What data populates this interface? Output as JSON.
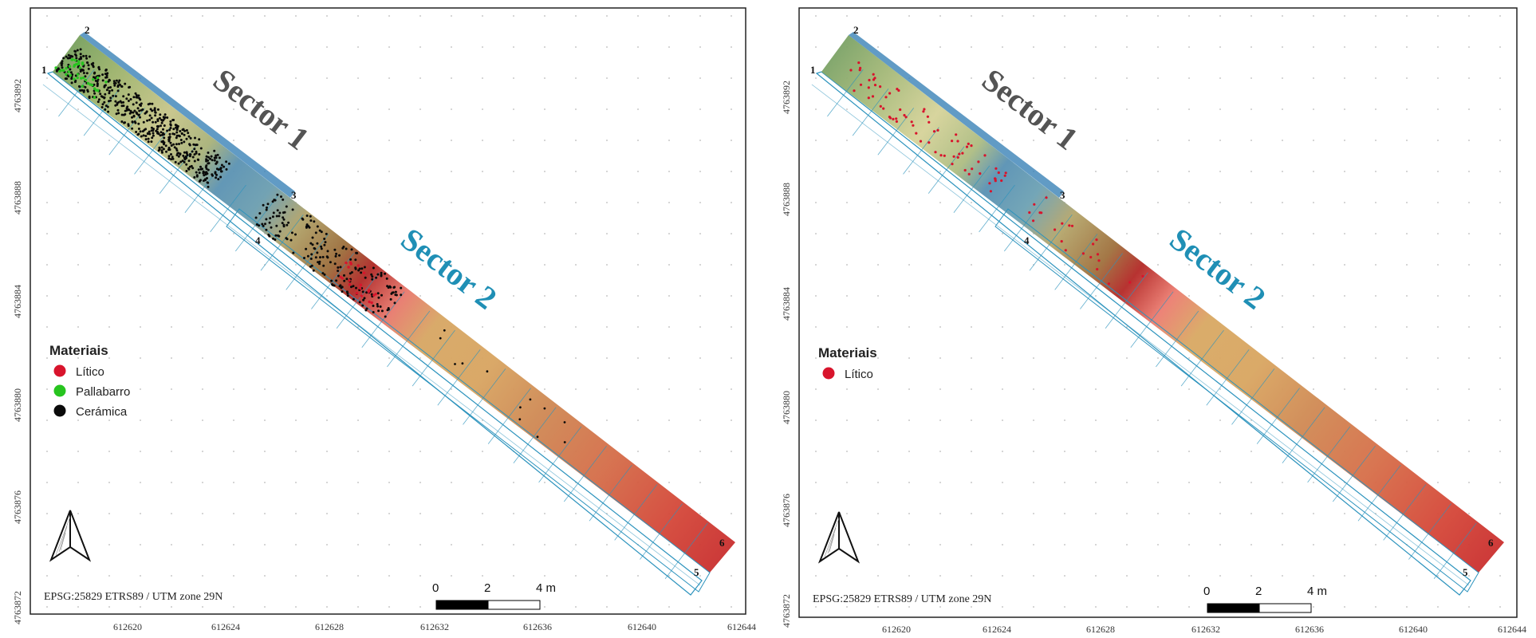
{
  "panels": [
    {
      "name": "left",
      "sector_labels": {
        "s1": "Sector 1",
        "s2": "Sector 2"
      },
      "corner_labels": [
        "1",
        "2",
        "3",
        "4",
        "5",
        "6"
      ],
      "legend": {
        "title": "Materiais",
        "items": [
          {
            "label": "Lítico",
            "color": "#d8142c"
          },
          {
            "label": "Pallabarro",
            "color": "#27c41f"
          },
          {
            "label": "Cerámica",
            "color": "#0a0a0a"
          }
        ]
      },
      "crs": "EPSG:25829 ETRS89 / UTM zone 29N",
      "scalebar": {
        "ticks": [
          "0",
          "2",
          "4 m"
        ]
      },
      "x_ticks": [
        "612620",
        "612624",
        "612628",
        "612632",
        "612636",
        "612640",
        "612644"
      ],
      "y_ticks": [
        "4763892",
        "4763888",
        "4763884",
        "4763880",
        "4763876",
        "4763872"
      ]
    },
    {
      "name": "right",
      "sector_labels": {
        "s1": "Sector 1",
        "s2": "Sector 2"
      },
      "corner_labels": [
        "1",
        "2",
        "3",
        "4",
        "5",
        "6"
      ],
      "legend": {
        "title": "Materiais",
        "items": [
          {
            "label": "Lítico",
            "color": "#d8142c"
          }
        ]
      },
      "crs": "EPSG:25829 ETRS89 / UTM zone 29N",
      "scalebar": {
        "ticks": [
          "0",
          "2",
          "4 m"
        ]
      },
      "x_ticks": [
        "612620",
        "612624",
        "612628",
        "612632",
        "612636",
        "612640",
        "612644"
      ],
      "y_ticks": [
        "4763892",
        "4763888",
        "4763884",
        "4763880",
        "4763876",
        "4763872"
      ]
    }
  ],
  "colors": {
    "sector1_label": "#545454",
    "sector2_label": "#1f8fb5",
    "grid_line": "#2c93bd"
  }
}
